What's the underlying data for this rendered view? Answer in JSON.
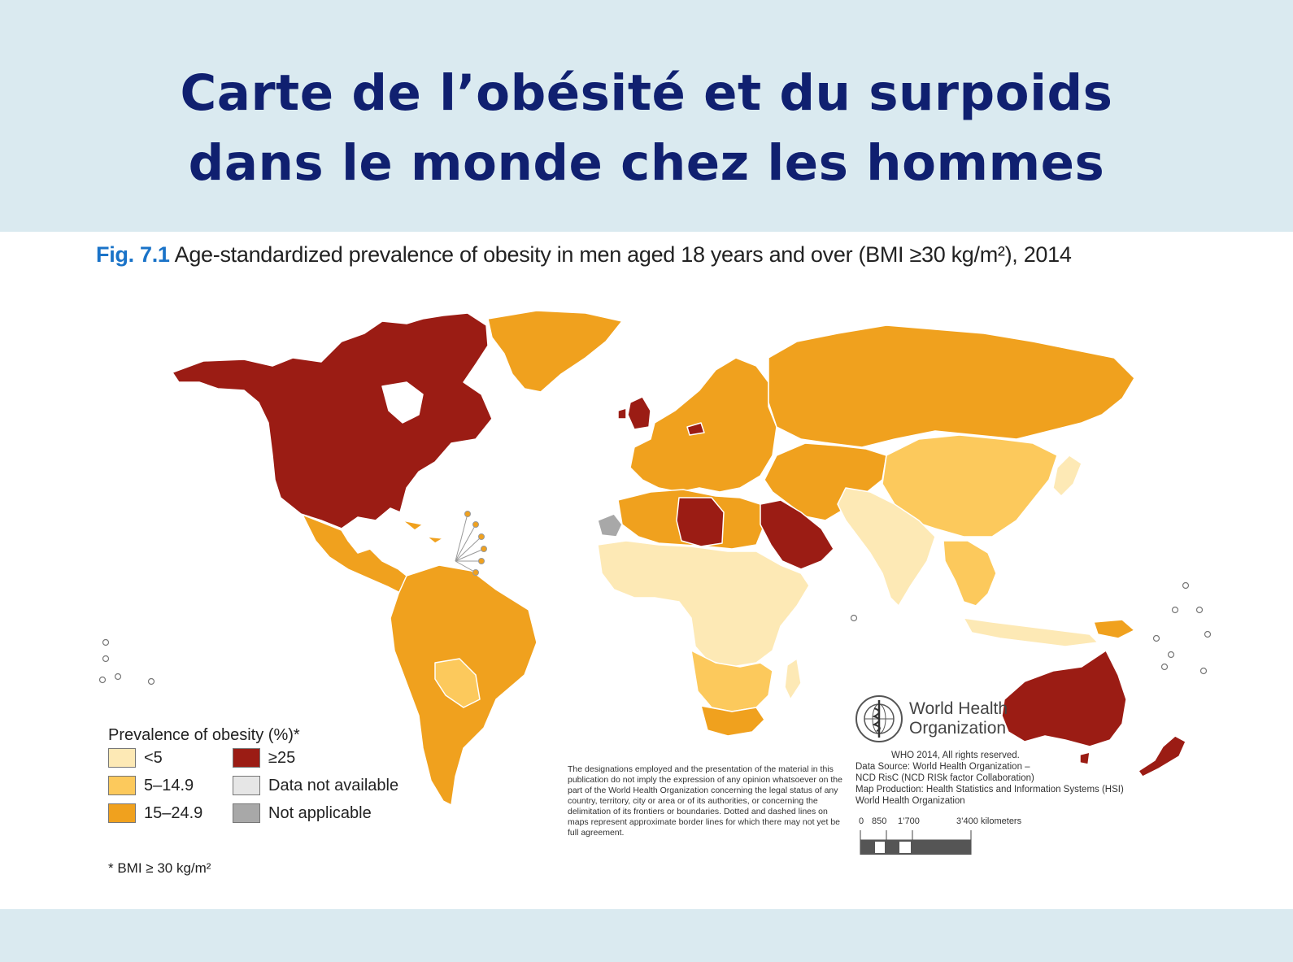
{
  "slide": {
    "title_line1": "Carte de l’obésité et du surpoids",
    "title_line2": "dans le monde chez les hommes"
  },
  "figure": {
    "label": "Fig. 7.1",
    "caption": "Age-standardized prevalence of obesity in men aged 18 years and over (BMI ≥30 kg/m²), 2014"
  },
  "legend": {
    "title": "Prevalence of obesity (%)*",
    "items": [
      {
        "label": "<5",
        "color": "#fde9b5"
      },
      {
        "label": "5–14.9",
        "color": "#fcc95c"
      },
      {
        "label": "15–24.9",
        "color": "#f0a11e"
      },
      {
        "label": "≥25",
        "color": "#9b1c14"
      },
      {
        "label": "Data not available",
        "color": "#e6e6e6"
      },
      {
        "label": "Not applicable",
        "color": "#a8a8a8"
      }
    ],
    "footnote": "* BMI ≥ 30 kg/m²"
  },
  "regions": [
    {
      "name": "north-america",
      "category": "≥25"
    },
    {
      "name": "greenland",
      "category": "15–24.9"
    },
    {
      "name": "mexico-central-america",
      "category": "15–24.9"
    },
    {
      "name": "south-america",
      "category": "15–24.9"
    },
    {
      "name": "bolivia-paraguay",
      "category": "5–14.9"
    },
    {
      "name": "united-kingdom",
      "category": "≥25"
    },
    {
      "name": "europe",
      "category": "15–24.9"
    },
    {
      "name": "russia",
      "category": "15–24.9"
    },
    {
      "name": "north-africa",
      "category": "15–24.9"
    },
    {
      "name": "libya",
      "category": "≥25"
    },
    {
      "name": "saudi-arabia-gulf",
      "category": "≥25"
    },
    {
      "name": "sub-saharan-africa",
      "category": "<5"
    },
    {
      "name": "southern-africa",
      "category": "5–14.9"
    },
    {
      "name": "south-africa",
      "category": "15–24.9"
    },
    {
      "name": "central-asia-iran",
      "category": "15–24.9"
    },
    {
      "name": "china-mongolia",
      "category": "5–14.9"
    },
    {
      "name": "south-asia",
      "category": "<5"
    },
    {
      "name": "southeast-asia",
      "category": "5–14.9"
    },
    {
      "name": "indonesia",
      "category": "<5"
    },
    {
      "name": "japan",
      "category": "<5"
    },
    {
      "name": "australia",
      "category": "≥25"
    },
    {
      "name": "new-zealand",
      "category": "≥25"
    },
    {
      "name": "western-sahara",
      "category": "Not applicable"
    }
  ],
  "organization": {
    "name_line1": "World Health",
    "name_line2": "Organization",
    "copyright": "WHO 2014, All rights reserved.",
    "credits": [
      "Data Source: World Health Organization –",
      "NCD RisC (NCD RISk factor Collaboration)",
      "Map Production: Health Statistics and Information Systems (HSI)",
      "World Health Organization"
    ]
  },
  "disclaimer": "The designations employed and the presentation of the material in this publication do not imply the expression of any opinion whatsoever on the part of the World Health Organization concerning the legal status of any country, territory, city or area or of its authorities, or concerning the delimitation of its frontiers or boundaries. Dotted and dashed lines on maps represent approximate border lines for which there may not yet be full agreement.",
  "scale_bar": {
    "ticks": [
      "0",
      "850",
      "1’700",
      "3’400 kilometers"
    ]
  }
}
